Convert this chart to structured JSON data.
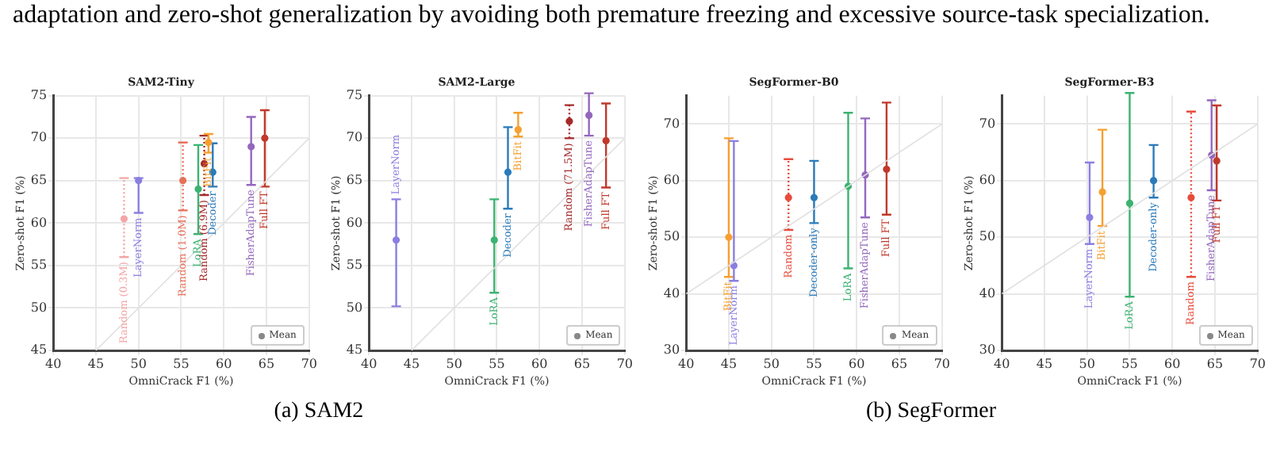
{
  "chart_data": [
    {
      "type": "scatter",
      "title": "SAM2-Tiny",
      "xlabel": "OmniCrack F1 (%)",
      "ylabel": "Zero-shot F1 (%)",
      "xlim": [
        40,
        70
      ],
      "ylim": [
        45,
        75
      ],
      "xticks": [
        40,
        45,
        50,
        55,
        60,
        65,
        70
      ],
      "yticks": [
        45,
        50,
        55,
        60,
        65,
        70,
        75
      ],
      "grid": true,
      "legend": "bottom right",
      "legend_title": "Mean",
      "marker": "circle",
      "annotations": [
        "adaptation and zero-shot generalization by avoiding both premature freezing and excessive source-task specialization.",
        "(a) SAM2"
      ],
      "series": [
        {
          "type": "line",
          "marker": "none",
          "color": "#e0e0e0",
          "x": [
            45,
            70
          ],
          "values": [
            45,
            70
          ]
        },
        {
          "name": "Random (0.3M)",
          "color": "#f4a6a6",
          "line_style": "dotted",
          "x": [
            48.3
          ],
          "values": [
            60.5
          ],
          "errors": [
            [
              56,
              65.3
            ]
          ]
        },
        {
          "name": "LayerNorm",
          "color": "#8a7fe0",
          "x": [
            50
          ],
          "values": [
            65
          ],
          "errors": [
            [
              61.2,
              65.3
            ]
          ]
        },
        {
          "name": "Random (1.0M)",
          "color": "#e8705a",
          "line_style": "dotted",
          "x": [
            55.2
          ],
          "values": [
            65
          ],
          "errors": [
            [
              61.5,
              69.5
            ]
          ]
        },
        {
          "name": "LoRA",
          "color": "#3cb371",
          "x": [
            57
          ],
          "values": [
            64
          ],
          "errors": [
            [
              58.7,
              69.2
            ]
          ]
        },
        {
          "name": "Random (6.9M)",
          "color": "#a52a2a",
          "line_style": "dotted",
          "x": [
            57.7
          ],
          "values": [
            67
          ],
          "errors": [
            [
              63.3,
              70.3
            ]
          ]
        },
        {
          "name": "BitFit",
          "color": "#f5a030",
          "x": [
            58.2
          ],
          "values": [
            69.5
          ],
          "errors": [
            [
              68.3,
              70.5
            ]
          ]
        },
        {
          "name": "Decoder",
          "color": "#2b7bba",
          "x": [
            58.7
          ],
          "values": [
            66
          ],
          "errors": [
            [
              64.3,
              69.4
            ]
          ]
        },
        {
          "name": "FisherAdapTune",
          "color": "#9467bd",
          "x": [
            63.2
          ],
          "values": [
            69
          ],
          "errors": [
            [
              64.5,
              72.5
            ]
          ]
        },
        {
          "name": "Full FT",
          "color": "#c0392b",
          "x": [
            64.8
          ],
          "values": [
            70
          ],
          "errors": [
            [
              64.3,
              73.3
            ]
          ]
        }
      ]
    },
    {
      "type": "scatter",
      "title": "SAM2-Large",
      "xlabel": "OmniCrack F1 (%)",
      "ylabel": "Zero-shot F1 (%)",
      "xlim": [
        40,
        70
      ],
      "ylim": [
        45,
        75
      ],
      "xticks": [
        40,
        45,
        50,
        55,
        60,
        65,
        70
      ],
      "yticks": [
        45,
        50,
        55,
        60,
        65,
        70,
        75
      ],
      "grid": true,
      "legend": "bottom right",
      "legend_title": "Mean",
      "marker": "circle",
      "series": [
        {
          "type": "line",
          "marker": "none",
          "color": "#e0e0e0",
          "x": [
            45,
            70
          ],
          "values": [
            45,
            70
          ]
        },
        {
          "name": "LayerNorm",
          "color": "#8a7fe0",
          "x": [
            43.2
          ],
          "values": [
            58
          ],
          "errors": [
            [
              50.2,
              62.8
            ]
          ]
        },
        {
          "name": "LoRA",
          "color": "#3cb371",
          "x": [
            54.7
          ],
          "values": [
            58
          ],
          "errors": [
            [
              51.8,
              62.8
            ]
          ]
        },
        {
          "name": "Decoder",
          "color": "#2b7bba",
          "x": [
            56.3
          ],
          "values": [
            66
          ],
          "errors": [
            [
              61.7,
              71.3
            ]
          ]
        },
        {
          "name": "BitFit",
          "color": "#f5a030",
          "x": [
            57.5
          ],
          "values": [
            71
          ],
          "errors": [
            [
              70.2,
              73
            ]
          ]
        },
        {
          "name": "Random (71.5M)",
          "color": "#a52a2a",
          "line_style": "dotted",
          "x": [
            63.5
          ],
          "values": [
            72
          ],
          "errors": [
            [
              70,
              73.9
            ]
          ]
        },
        {
          "name": "FisherAdapTune",
          "color": "#9467bd",
          "x": [
            65.8
          ],
          "values": [
            72.7
          ],
          "errors": [
            [
              70.3,
              75.3
            ]
          ]
        },
        {
          "name": "Full FT",
          "color": "#c0392b",
          "x": [
            67.8
          ],
          "values": [
            69.7
          ],
          "errors": [
            [
              64.2,
              74.1
            ]
          ]
        }
      ]
    },
    {
      "type": "scatter",
      "title": "SegFormer-B0",
      "xlabel": "OmniCrack F1 (%)",
      "ylabel": "Zero-shot F1 (%)",
      "xlim": [
        40,
        70
      ],
      "ylim": [
        30,
        75
      ],
      "xticks": [
        40,
        45,
        50,
        55,
        60,
        65,
        70
      ],
      "yticks": [
        30,
        40,
        50,
        60,
        70
      ],
      "grid": true,
      "legend": "bottom right",
      "legend_title": "Mean",
      "marker": "circle",
      "annotations": [
        "(b) SegFormer"
      ],
      "series": [
        {
          "type": "line",
          "marker": "none",
          "color": "#e0e0e0",
          "x": [
            40,
            70
          ],
          "values": [
            40,
            70
          ]
        },
        {
          "name": "BitFit",
          "color": "#f5a030",
          "x": [
            45
          ],
          "values": [
            50
          ],
          "errors": [
            [
              43,
              67.5
            ]
          ]
        },
        {
          "name": "LayerNorm",
          "color": "#8a7fe0",
          "x": [
            45.6
          ],
          "values": [
            45
          ],
          "errors": [
            [
              42.3,
              67
            ]
          ]
        },
        {
          "name": "Random",
          "color": "#e74c3c",
          "line_style": "dotted",
          "x": [
            52
          ],
          "values": [
            57
          ],
          "errors": [
            [
              51.3,
              63.8
            ]
          ]
        },
        {
          "name": "Decoder-only",
          "color": "#2b7bba",
          "x": [
            55
          ],
          "values": [
            57
          ],
          "errors": [
            [
              52.5,
              63.5
            ]
          ]
        },
        {
          "name": "LoRA",
          "color": "#3cb371",
          "x": [
            59
          ],
          "values": [
            59
          ],
          "errors": [
            [
              44.5,
              72
            ]
          ]
        },
        {
          "name": "FisherAdapTune",
          "color": "#9467bd",
          "x": [
            61
          ],
          "values": [
            61
          ],
          "errors": [
            [
              53.5,
              71
            ]
          ]
        },
        {
          "name": "Full FT",
          "color": "#c0392b",
          "x": [
            63.5
          ],
          "values": [
            62
          ],
          "errors": [
            [
              54,
              73.8
            ]
          ]
        }
      ]
    },
    {
      "type": "scatter",
      "title": "SegFormer-B3",
      "xlabel": "OmniCrack F1 (%)",
      "ylabel": "Zero-shot F1 (%)",
      "xlim": [
        40,
        70
      ],
      "ylim": [
        30,
        75
      ],
      "xticks": [
        40,
        45,
        50,
        55,
        60,
        65,
        70
      ],
      "yticks": [
        30,
        40,
        50,
        60,
        70
      ],
      "grid": true,
      "legend": "bottom right",
      "legend_title": "Mean",
      "marker": "circle",
      "series": [
        {
          "type": "line",
          "marker": "none",
          "color": "#e0e0e0",
          "x": [
            40,
            70
          ],
          "values": [
            40,
            70
          ]
        },
        {
          "name": "LayerNorm",
          "color": "#8a7fe0",
          "x": [
            50.3
          ],
          "values": [
            53.5
          ],
          "errors": [
            [
              48.8,
              63.2
            ]
          ]
        },
        {
          "name": "BitFit",
          "color": "#f5a030",
          "x": [
            51.8
          ],
          "values": [
            58
          ],
          "errors": [
            [
              52,
              69
            ]
          ]
        },
        {
          "name": "LoRA",
          "color": "#3cb371",
          "x": [
            55
          ],
          "values": [
            56
          ],
          "errors": [
            [
              39.5,
              75.5
            ]
          ]
        },
        {
          "name": "Decoder-only",
          "color": "#2b7bba",
          "x": [
            57.8
          ],
          "values": [
            60
          ],
          "errors": [
            [
              57,
              66.3
            ]
          ]
        },
        {
          "name": "Random",
          "color": "#e74c3c",
          "line_style": "dotted",
          "x": [
            62.2
          ],
          "values": [
            57
          ],
          "errors": [
            [
              43,
              72.2
            ]
          ]
        },
        {
          "name": "FisherAdapTune",
          "color": "#9467bd",
          "x": [
            64.6
          ],
          "values": [
            64.5
          ],
          "errors": [
            [
              58.3,
              74.2
            ]
          ]
        },
        {
          "name": "Full FT",
          "color": "#c0392b",
          "x": [
            65.2
          ],
          "values": [
            63.5
          ],
          "errors": [
            [
              56.5,
              73.3
            ]
          ]
        }
      ]
    }
  ]
}
